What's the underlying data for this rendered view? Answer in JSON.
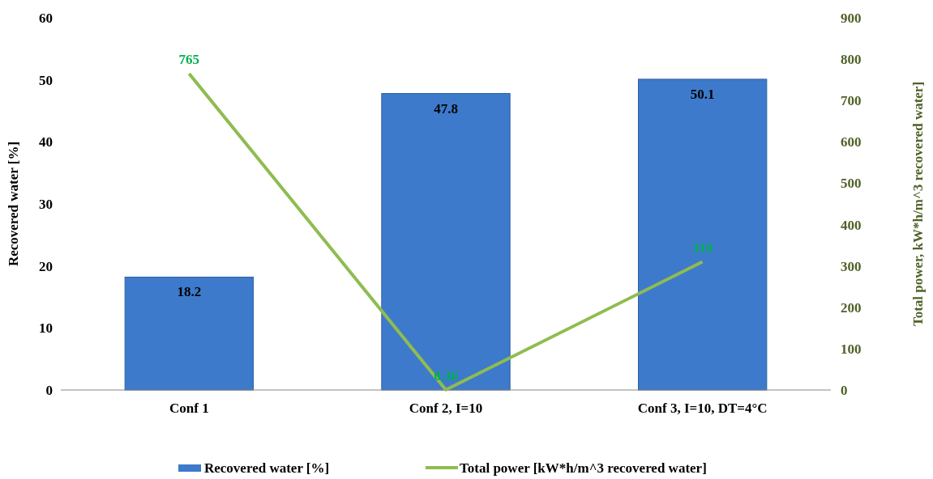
{
  "chart_data": {
    "type": "bar",
    "categories": [
      "Conf 1",
      "Conf 2, I=10",
      "Conf 3, I=10, DT=4°C"
    ],
    "series": [
      {
        "name": "Recovered water [%]",
        "color": "#3d7acb",
        "values": [
          18.2,
          47.8,
          50.1
        ]
      },
      {
        "name": "Total power [kW*h/m^3 recovered water]",
        "type": "line",
        "axis": "y2",
        "color": "#8fbc50",
        "values": [
          765,
          0.36,
          310
        ]
      }
    ],
    "ylabel": "Recovered water [%]",
    "y2label": "Total power, kW*h/m^3 recovered water]",
    "ylim": [
      0,
      60
    ],
    "yticks": [
      0,
      10,
      20,
      30,
      40,
      50,
      60
    ],
    "y2lim": [
      0,
      900
    ],
    "y2ticks": [
      0,
      100,
      200,
      300,
      400,
      500,
      600,
      700,
      800,
      900
    ],
    "data_labels": true,
    "legend": "bottom",
    "grid": false,
    "marker": "none"
  }
}
